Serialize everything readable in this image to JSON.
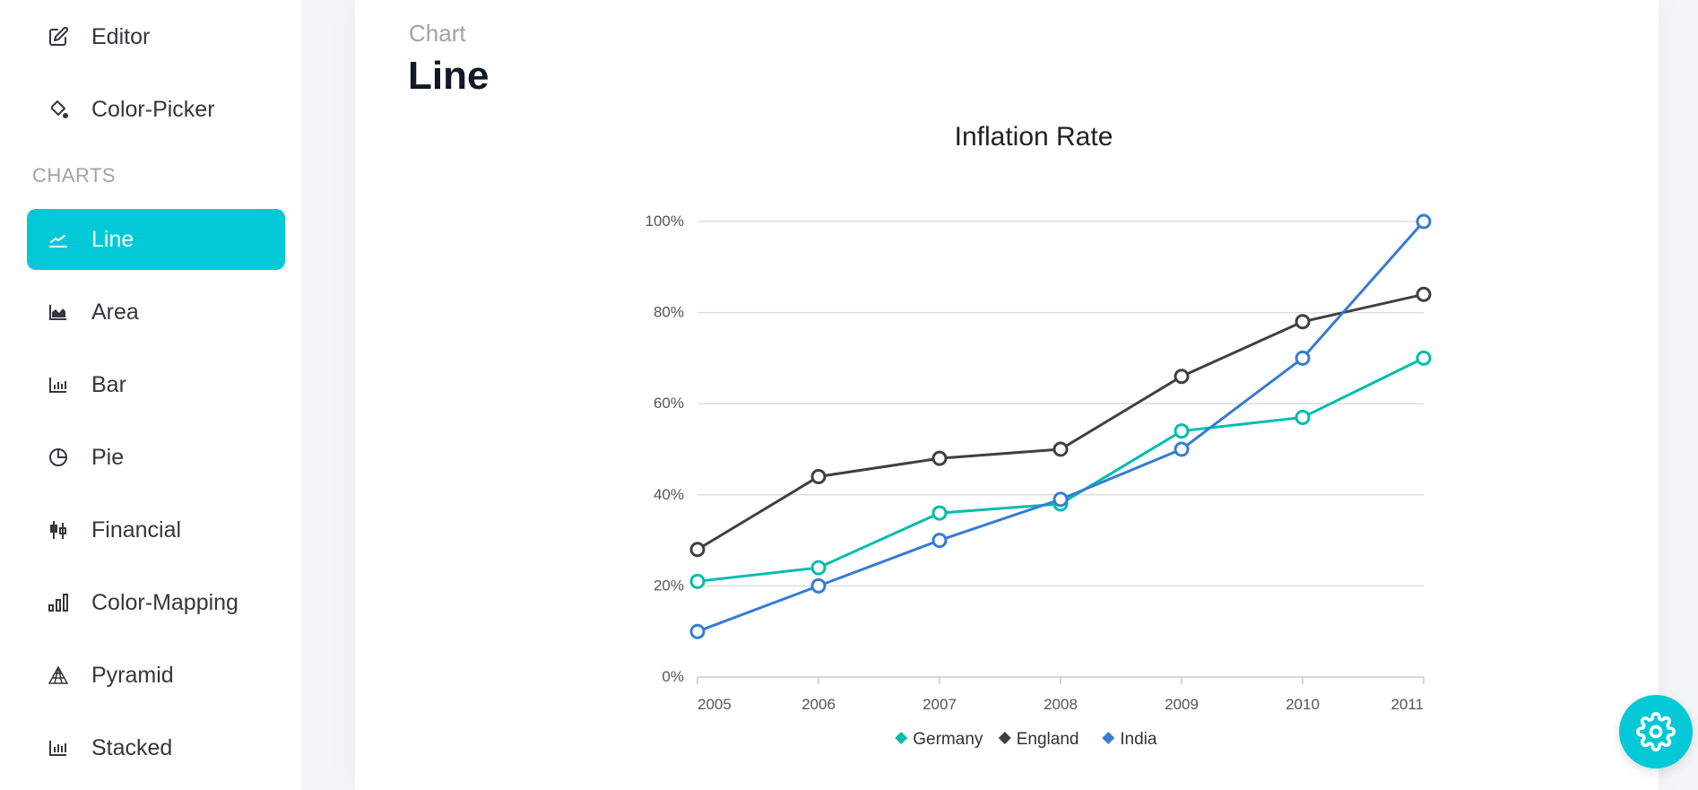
{
  "sidebar": {
    "items_top": [
      {
        "label": "Editor",
        "icon": "edit-icon"
      },
      {
        "label": "Color-Picker",
        "icon": "paint-bucket-icon"
      }
    ],
    "section_title": "CHARTS",
    "chart_items": [
      {
        "label": "Line",
        "icon": "line-chart-icon",
        "active": true
      },
      {
        "label": "Area",
        "icon": "area-chart-icon"
      },
      {
        "label": "Bar",
        "icon": "bar-chart-icon"
      },
      {
        "label": "Pie",
        "icon": "pie-chart-icon"
      },
      {
        "label": "Financial",
        "icon": "candlestick-icon"
      },
      {
        "label": "Color-Mapping",
        "icon": "color-mapping-icon"
      },
      {
        "label": "Pyramid",
        "icon": "pyramid-icon"
      },
      {
        "label": "Stacked",
        "icon": "stacked-chart-icon"
      }
    ],
    "accent_color": "#03c9d7"
  },
  "header": {
    "category": "Chart",
    "title": "Line"
  },
  "settings": {
    "icon": "gear-icon",
    "color": "#03c9d7"
  },
  "chart_data": {
    "type": "line",
    "title": "Inflation Rate",
    "x": [
      "2005",
      "2006",
      "2007",
      "2008",
      "2009",
      "2010",
      "2011"
    ],
    "y_ticks": [
      "0%",
      "20%",
      "40%",
      "60%",
      "80%",
      "100%"
    ],
    "ylim": [
      0,
      100
    ],
    "grid": true,
    "legend_position": "bottom",
    "series": [
      {
        "name": "Germany",
        "color": "#00bdae",
        "values": [
          21,
          24,
          36,
          38,
          54,
          57,
          70
        ]
      },
      {
        "name": "England",
        "color": "#404041",
        "values": [
          28,
          44,
          48,
          50,
          66,
          78,
          84
        ]
      },
      {
        "name": "India",
        "color": "#357cd2",
        "values": [
          10,
          20,
          30,
          39,
          50,
          70,
          100
        ]
      }
    ]
  }
}
